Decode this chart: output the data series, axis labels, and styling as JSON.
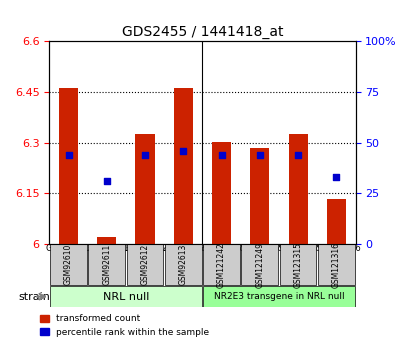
{
  "title": "GDS2455 / 1441418_at",
  "samples": [
    "GSM92610",
    "GSM92611",
    "GSM92612",
    "GSM92613",
    "GSM121242",
    "GSM121249",
    "GSM121315",
    "GSM121316"
  ],
  "red_values": [
    6.462,
    6.02,
    6.325,
    6.462,
    6.302,
    6.285,
    6.325,
    6.132
  ],
  "blue_values": [
    6.255,
    6.205,
    6.255,
    6.265,
    6.255,
    6.255,
    6.255,
    6.218
  ],
  "blue_percentile": [
    44,
    31,
    44,
    46,
    44,
    44,
    44,
    33
  ],
  "ymin": 6.0,
  "ymax": 6.6,
  "yticks": [
    6.0,
    6.15,
    6.3,
    6.45,
    6.6
  ],
  "ytick_labels": [
    "6",
    "6.15",
    "6.3",
    "6.45",
    "6.6"
  ],
  "right_yticks": [
    0,
    25,
    50,
    75,
    100
  ],
  "right_ytick_labels": [
    "0",
    "25",
    "50",
    "75",
    "100%"
  ],
  "group1_label": "NRL null",
  "group2_label": "NR2E3 transgene in NRL null",
  "group1_indices": [
    0,
    1,
    2,
    3
  ],
  "group2_indices": [
    4,
    5,
    6,
    7
  ],
  "strain_label": "strain",
  "legend_red": "transformed count",
  "legend_blue": "percentile rank within the sample",
  "bar_color": "#cc2200",
  "blue_color": "#0000cc",
  "bar_width": 0.5,
  "group1_bg": "#ccffcc",
  "group2_bg": "#99ff99",
  "tick_bg": "#cccccc"
}
